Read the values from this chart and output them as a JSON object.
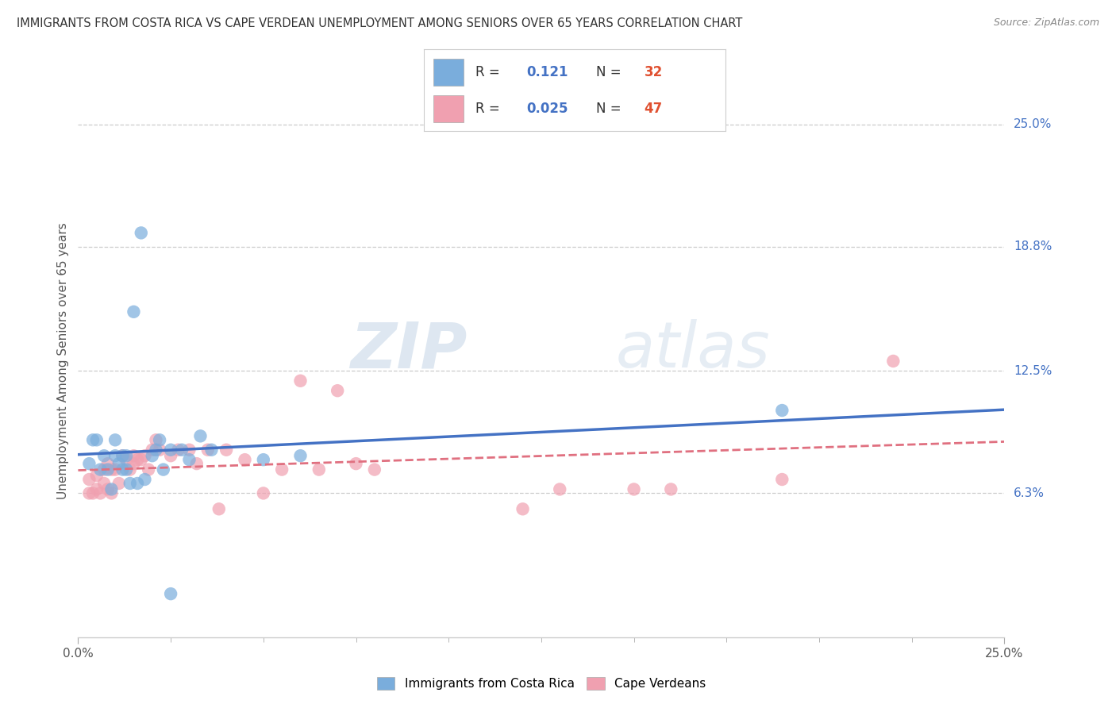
{
  "title": "IMMIGRANTS FROM COSTA RICA VS CAPE VERDEAN UNEMPLOYMENT AMONG SENIORS OVER 65 YEARS CORRELATION CHART",
  "source": "Source: ZipAtlas.com",
  "ylabel": "Unemployment Among Seniors over 65 years",
  "xlim": [
    0.0,
    0.25
  ],
  "ylim": [
    -0.01,
    0.27
  ],
  "y_tick_vals_right": [
    0.25,
    0.188,
    0.125,
    0.063
  ],
  "y_tick_labels_right": [
    "25.0%",
    "18.8%",
    "12.5%",
    "6.3%"
  ],
  "blue_R": 0.121,
  "blue_N": 32,
  "pink_R": 0.025,
  "pink_N": 47,
  "blue_color": "#7AADDC",
  "pink_color": "#F0A0B0",
  "blue_line_color": "#4472C4",
  "pink_line_color": "#E07080",
  "watermark_zip": "ZIP",
  "watermark_atlas": "atlas",
  "background_color": "#ffffff",
  "blue_x": [
    0.003,
    0.004,
    0.005,
    0.006,
    0.007,
    0.008,
    0.009,
    0.01,
    0.01,
    0.011,
    0.012,
    0.012,
    0.013,
    0.013,
    0.014,
    0.015,
    0.016,
    0.017,
    0.018,
    0.02,
    0.021,
    0.022,
    0.023,
    0.025,
    0.028,
    0.03,
    0.033,
    0.036,
    0.05,
    0.06,
    0.19,
    0.025
  ],
  "blue_y": [
    0.078,
    0.09,
    0.09,
    0.075,
    0.082,
    0.075,
    0.065,
    0.09,
    0.082,
    0.078,
    0.075,
    0.082,
    0.075,
    0.082,
    0.068,
    0.155,
    0.068,
    0.195,
    0.07,
    0.082,
    0.085,
    0.09,
    0.075,
    0.085,
    0.085,
    0.08,
    0.092,
    0.085,
    0.08,
    0.082,
    0.105,
    0.012
  ],
  "pink_x": [
    0.003,
    0.003,
    0.004,
    0.005,
    0.005,
    0.006,
    0.007,
    0.007,
    0.008,
    0.008,
    0.009,
    0.009,
    0.01,
    0.011,
    0.012,
    0.013,
    0.014,
    0.015,
    0.015,
    0.016,
    0.017,
    0.018,
    0.019,
    0.02,
    0.021,
    0.022,
    0.025,
    0.027,
    0.03,
    0.032,
    0.035,
    0.038,
    0.04,
    0.045,
    0.05,
    0.055,
    0.06,
    0.065,
    0.07,
    0.075,
    0.08,
    0.12,
    0.13,
    0.15,
    0.16,
    0.19,
    0.22
  ],
  "pink_y": [
    0.063,
    0.07,
    0.063,
    0.065,
    0.072,
    0.063,
    0.068,
    0.075,
    0.065,
    0.078,
    0.063,
    0.075,
    0.075,
    0.068,
    0.082,
    0.08,
    0.075,
    0.082,
    0.078,
    0.08,
    0.08,
    0.082,
    0.075,
    0.085,
    0.09,
    0.085,
    0.082,
    0.085,
    0.085,
    0.078,
    0.085,
    0.055,
    0.085,
    0.08,
    0.063,
    0.075,
    0.12,
    0.075,
    0.115,
    0.078,
    0.075,
    0.055,
    0.065,
    0.065,
    0.065,
    0.07,
    0.13
  ]
}
